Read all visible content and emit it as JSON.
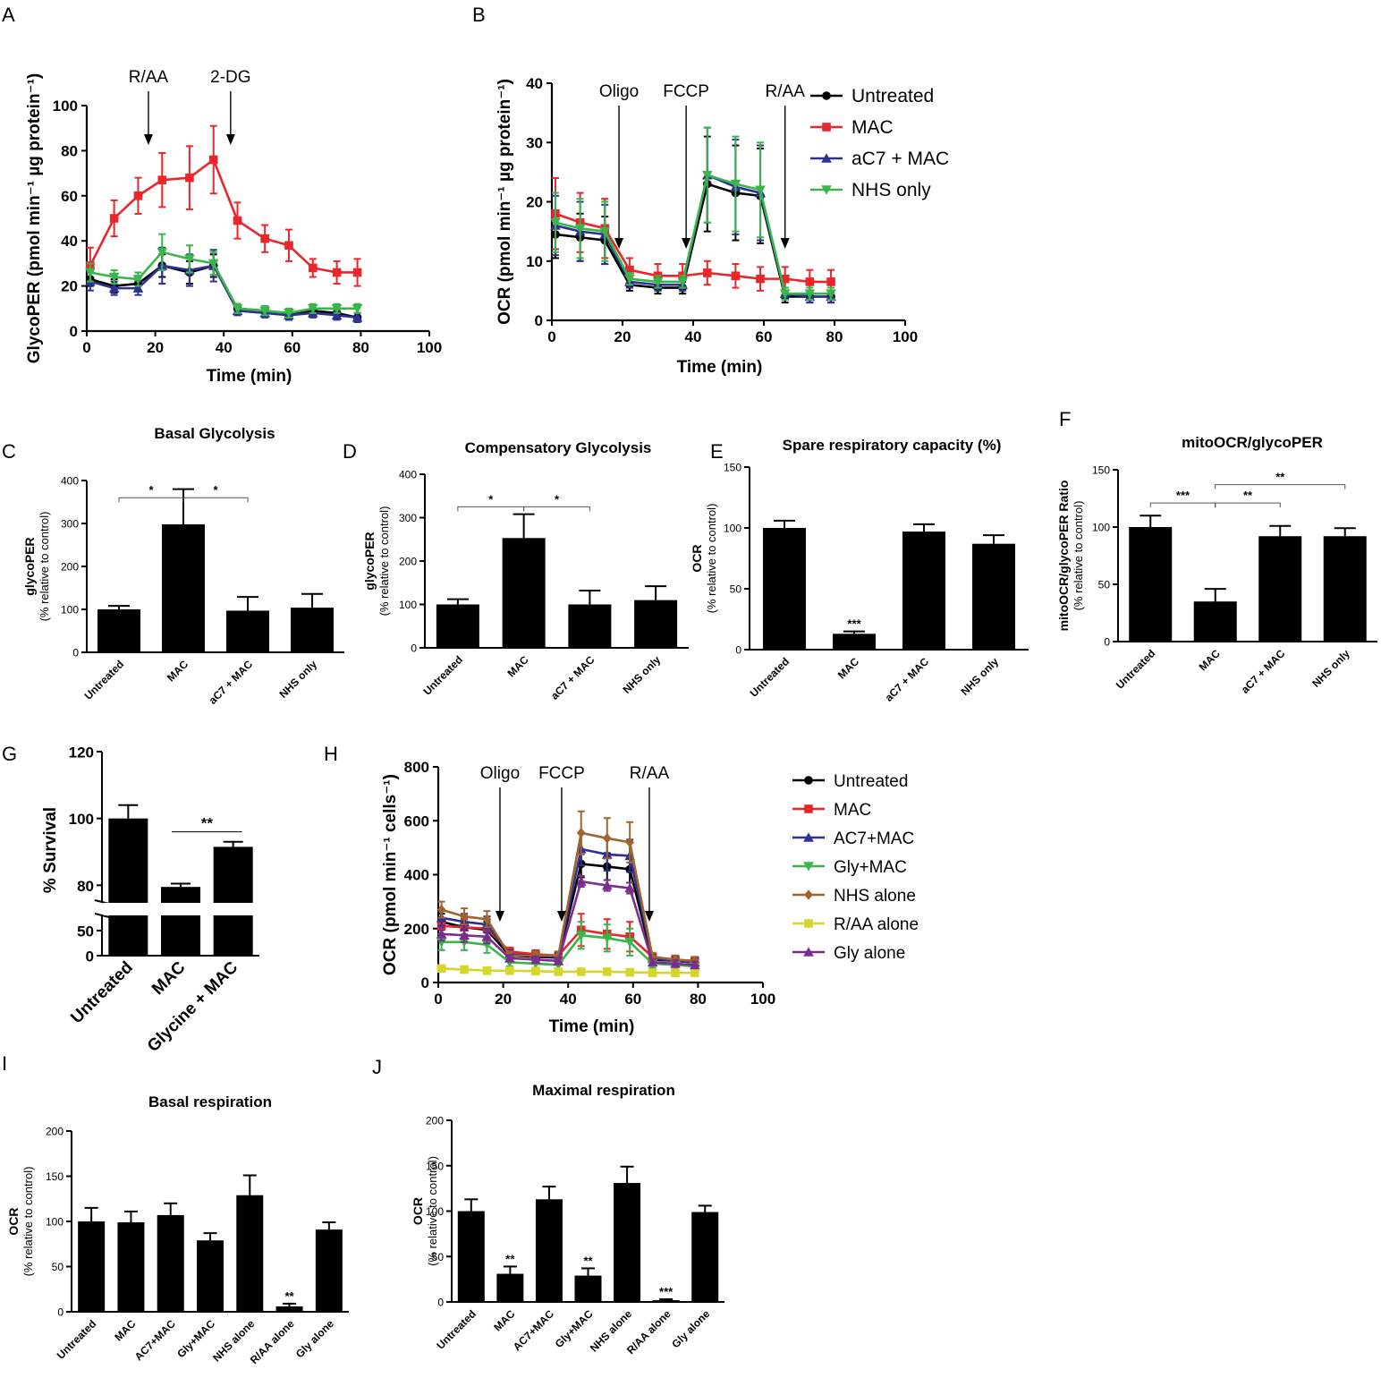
{
  "colors": {
    "untreated": "#000000",
    "mac": "#e8262c",
    "ac7mac": "#2e3192",
    "nhs": "#39b54a",
    "nhsalone": "#a0642d",
    "raa": "#d6d62a",
    "gly": "#7b2d8e"
  },
  "chart_data": [
    {
      "id": "A",
      "panel": "A",
      "type": "line",
      "xlabel": "Time (min)",
      "ylabel": "GlycoPER (pmol min⁻¹ µg protein⁻¹)",
      "xlim": [
        0,
        100
      ],
      "xticks": [
        0,
        20,
        40,
        60,
        80,
        100
      ],
      "ylim": [
        0,
        100
      ],
      "yticks": [
        0,
        20,
        40,
        60,
        80,
        100
      ],
      "x": [
        1,
        8,
        15,
        22,
        30,
        37,
        44,
        52,
        59,
        66,
        73,
        79
      ],
      "series": [
        {
          "name": "Untreated",
          "color": "untreated",
          "marker": "circle",
          "values": [
            23,
            20,
            21,
            29,
            26,
            29,
            10,
            9,
            7,
            9,
            8,
            6
          ],
          "err": [
            3,
            3,
            3,
            5,
            5,
            5,
            2,
            2,
            2,
            2,
            2,
            2
          ]
        },
        {
          "name": "MAC",
          "color": "mac",
          "marker": "square",
          "values": [
            29,
            50,
            60,
            67,
            68,
            76,
            49,
            41,
            38,
            28,
            26,
            26
          ],
          "err": [
            8,
            8,
            8,
            12,
            14,
            15,
            8,
            6,
            7,
            4,
            5,
            6
          ]
        },
        {
          "name": "aC7 + MAC",
          "color": "ac7mac",
          "marker": "triangle",
          "values": [
            22,
            19,
            19,
            29,
            27,
            29,
            9,
            8,
            7,
            8,
            7,
            6
          ],
          "err": [
            4,
            3,
            3,
            8,
            7,
            7,
            2,
            2,
            2,
            2,
            2,
            2
          ]
        },
        {
          "name": "NHS only",
          "color": "nhs",
          "marker": "tridown",
          "values": [
            26,
            24,
            23,
            35,
            32,
            30,
            10,
            9,
            8,
            10,
            10,
            10
          ],
          "err": [
            4,
            3,
            3,
            8,
            6,
            5,
            2,
            2,
            2,
            2,
            2,
            2
          ]
        }
      ],
      "annotations": [
        {
          "label": "R/AA",
          "x": 18
        },
        {
          "label": "2-DG",
          "x": 42
        }
      ]
    },
    {
      "id": "B",
      "panel": "B",
      "type": "line",
      "xlabel": "Time (min)",
      "ylabel": "OCR (pmol min⁻¹ µg protein⁻¹)",
      "xlim": [
        0,
        100
      ],
      "xticks": [
        0,
        20,
        40,
        60,
        80,
        100
      ],
      "ylim": [
        0,
        40
      ],
      "yticks": [
        0,
        10,
        20,
        30,
        40
      ],
      "x": [
        1,
        8,
        15,
        22,
        30,
        37,
        44,
        52,
        59,
        66,
        73,
        79
      ],
      "series": [
        {
          "name": "Untreated",
          "color": "untreated",
          "marker": "circle",
          "values": [
            14.5,
            14,
            13.5,
            6,
            5.5,
            5.5,
            23,
            21.5,
            21,
            4,
            4,
            4
          ],
          "err": [
            4,
            4,
            4,
            1,
            1,
            1,
            8,
            8,
            8,
            1,
            1,
            1
          ]
        },
        {
          "name": "MAC",
          "color": "mac",
          "marker": "square",
          "values": [
            18,
            16.5,
            15.5,
            8.5,
            7.5,
            7.5,
            8,
            7.5,
            7,
            7,
            6.5,
            6.5
          ],
          "err": [
            6,
            5,
            5,
            2,
            2,
            2,
            2,
            2,
            2,
            2,
            2,
            2
          ]
        },
        {
          "name": "aC7 + MAC",
          "color": "ac7mac",
          "marker": "triangle",
          "values": [
            16,
            15,
            14.5,
            6.5,
            6,
            6,
            24.5,
            22.5,
            21.5,
            4.5,
            4,
            4
          ],
          "err": [
            5,
            5,
            5,
            1,
            1,
            1,
            8,
            8,
            8,
            1,
            1,
            1
          ]
        },
        {
          "name": "NHS only",
          "color": "nhs",
          "marker": "tridown",
          "values": [
            16.5,
            15.5,
            15,
            7,
            6.5,
            6.5,
            24.5,
            23,
            22,
            4.5,
            4.5,
            4.5
          ],
          "err": [
            5,
            5,
            5,
            1,
            1,
            1,
            8,
            8,
            8,
            1,
            1,
            1
          ]
        }
      ],
      "annotations": [
        {
          "label": "Oligo",
          "x": 19
        },
        {
          "label": "FCCP",
          "x": 38
        },
        {
          "label": "R/AA",
          "x": 66
        }
      ]
    },
    {
      "id": "C",
      "panel": "C",
      "type": "bar",
      "title": "Basal Glycolysis",
      "ylabel": [
        "glycoPER",
        "(% relative to control)"
      ],
      "ylim": [
        0,
        400
      ],
      "yticks": [
        0,
        100,
        200,
        300,
        400
      ],
      "categories": [
        "Untreated",
        "MAC",
        "aC7 + MAC",
        "NHS only"
      ],
      "values": [
        100,
        298,
        97,
        104
      ],
      "err": [
        8,
        82,
        32,
        32
      ],
      "brackets": [
        {
          "from": 0,
          "to": 1,
          "label": "*",
          "y": 360
        },
        {
          "from": 1,
          "to": 2,
          "label": "*",
          "y": 360
        }
      ]
    },
    {
      "id": "D",
      "panel": "D",
      "type": "bar",
      "title": "Compensatory Glycolysis",
      "ylabel": [
        "glycoPER",
        "(% relative to control)"
      ],
      "ylim": [
        0,
        400
      ],
      "yticks": [
        0,
        100,
        200,
        300,
        400
      ],
      "categories": [
        "Untreated",
        "MAC",
        "aC7 + MAC",
        "NHS only"
      ],
      "values": [
        100,
        253,
        100,
        110
      ],
      "err": [
        12,
        55,
        32,
        32
      ],
      "brackets": [
        {
          "from": 0,
          "to": 1,
          "label": "*",
          "y": 325
        },
        {
          "from": 1,
          "to": 2,
          "label": "*",
          "y": 325
        }
      ]
    },
    {
      "id": "E",
      "panel": "E",
      "type": "bar",
      "title": "Spare respiratory capacity (%)",
      "ylabel": [
        "OCR",
        "(% relative to control)"
      ],
      "ylim": [
        0,
        150
      ],
      "yticks": [
        0,
        50,
        100,
        150
      ],
      "categories": [
        "Untreated",
        "MAC",
        "aC7 + MAC",
        "NHS only"
      ],
      "values": [
        100,
        13,
        97,
        87
      ],
      "err": [
        6,
        2,
        6,
        7
      ],
      "stars": [
        {
          "bar": 1,
          "label": "***"
        }
      ]
    },
    {
      "id": "F",
      "panel": "F",
      "type": "bar",
      "title": "mitoOCR/glycoPER",
      "ylabel": [
        "mitoOCR/glycoPER Ratio",
        "(% relative to control)"
      ],
      "ylim": [
        0,
        150
      ],
      "yticks": [
        0,
        50,
        100,
        150
      ],
      "categories": [
        "Untreated",
        "MAC",
        "aC7 + MAC",
        "NHS only"
      ],
      "values": [
        100,
        35,
        92,
        92
      ],
      "err": [
        10,
        11,
        9,
        7
      ],
      "brackets": [
        {
          "from": 0,
          "to": 1,
          "label": "***",
          "y": 121
        },
        {
          "from": 1,
          "to": 2,
          "label": "**",
          "y": 121
        },
        {
          "from": 1,
          "to": 3,
          "label": "**",
          "y": 137
        }
      ]
    },
    {
      "id": "G",
      "panel": "G",
      "type": "bar",
      "title": "",
      "ylabel": [
        "% Survival"
      ],
      "ylim": [
        0,
        120
      ],
      "yticks": [
        0,
        50,
        80,
        100,
        120
      ],
      "categories": [
        "Untreated",
        "MAC",
        "Glycine + MAC"
      ],
      "values": [
        100,
        79.5,
        91.5
      ],
      "err": [
        4,
        1,
        1.5
      ],
      "brackets": [
        {
          "from": 1,
          "to": 2,
          "label": "**",
          "y": 96,
          "flat": true
        }
      ]
    },
    {
      "id": "H",
      "panel": "H",
      "type": "line",
      "xlabel": "Time (min)",
      "ylabel": "OCR (pmol min⁻¹ cells⁻¹)",
      "xlim": [
        0,
        100
      ],
      "xticks": [
        0,
        20,
        40,
        60,
        80,
        100
      ],
      "ylim": [
        0,
        800
      ],
      "yticks": [
        0,
        200,
        400,
        600,
        800
      ],
      "x": [
        1,
        8,
        15,
        22,
        30,
        37,
        44,
        52,
        59,
        66,
        73,
        79
      ],
      "series": [
        {
          "name": "Untreated",
          "color": "untreated",
          "marker": "circle",
          "values": [
            225,
            205,
            195,
            100,
            95,
            92,
            440,
            430,
            420,
            85,
            80,
            75
          ],
          "err": [
            30,
            30,
            30,
            15,
            15,
            15,
            50,
            50,
            50,
            15,
            15,
            15
          ]
        },
        {
          "name": "MAC",
          "color": "mac",
          "marker": "square",
          "values": [
            210,
            205,
            200,
            115,
            105,
            100,
            195,
            180,
            170,
            95,
            85,
            80
          ],
          "err": [
            30,
            30,
            30,
            15,
            15,
            15,
            60,
            55,
            55,
            15,
            15,
            15
          ]
        },
        {
          "name": "AC7+MAC",
          "color": "ac7mac",
          "marker": "triangle",
          "values": [
            240,
            225,
            215,
            105,
            100,
            95,
            495,
            475,
            470,
            90,
            80,
            75
          ],
          "err": [
            30,
            30,
            30,
            15,
            15,
            15,
            60,
            60,
            60,
            15,
            15,
            15
          ]
        },
        {
          "name": "Gly+MAC",
          "color": "nhs",
          "marker": "tridown",
          "values": [
            150,
            150,
            140,
            75,
            70,
            65,
            175,
            165,
            150,
            70,
            65,
            60
          ],
          "err": [
            30,
            30,
            30,
            15,
            15,
            15,
            50,
            50,
            50,
            15,
            15,
            15
          ]
        },
        {
          "name": "NHS alone",
          "color": "nhsalone",
          "marker": "diamond",
          "values": [
            270,
            245,
            235,
            100,
            100,
            100,
            555,
            535,
            520,
            95,
            85,
            80
          ],
          "err": [
            30,
            30,
            30,
            15,
            15,
            15,
            80,
            75,
            75,
            15,
            15,
            15
          ]
        },
        {
          "name": "R/AA alone",
          "color": "raa",
          "marker": "square",
          "values": [
            52,
            48,
            44,
            44,
            42,
            40,
            40,
            40,
            38,
            36,
            36,
            36
          ],
          "err": [
            10,
            8,
            8,
            8,
            8,
            8,
            8,
            8,
            8,
            8,
            8,
            8
          ]
        },
        {
          "name": "Gly alone",
          "color": "gly",
          "marker": "triangle",
          "values": [
            180,
            175,
            170,
            90,
            85,
            80,
            375,
            360,
            350,
            75,
            70,
            65
          ],
          "err": [
            25,
            25,
            25,
            12,
            12,
            12,
            20,
            20,
            20,
            12,
            12,
            12
          ]
        }
      ],
      "annotations": [
        {
          "label": "Oligo",
          "x": 19
        },
        {
          "label": "FCCP",
          "x": 38
        },
        {
          "label": "R/AA",
          "x": 65
        }
      ]
    },
    {
      "id": "I",
      "panel": "I",
      "type": "bar",
      "title": "Basal respiration",
      "ylabel": [
        "OCR",
        "(% relative to control)"
      ],
      "ylim": [
        0,
        200
      ],
      "yticks": [
        0,
        50,
        100,
        150,
        200
      ],
      "categories": [
        "Untreated",
        "MAC",
        "AC7+MAC",
        "Gly+MAC",
        "NHS alone",
        "R/AA alone",
        "Gly alone"
      ],
      "values": [
        100,
        99,
        107,
        79,
        129,
        6,
        91
      ],
      "err": [
        15,
        12,
        13,
        8,
        22,
        3,
        8
      ],
      "stars": [
        {
          "bar": 5,
          "label": "**"
        }
      ]
    },
    {
      "id": "J",
      "panel": "J",
      "type": "bar",
      "title": "Maximal respiration",
      "ylabel": [
        "OCR",
        "(% relative to control)"
      ],
      "ylim": [
        0,
        200
      ],
      "yticks": [
        0,
        50,
        100,
        150,
        200
      ],
      "categories": [
        "Untreated",
        "MAC",
        "AC7+MAC",
        "Gly+MAC",
        "NHS alone",
        "R/AA alone",
        "Gly alone"
      ],
      "values": [
        100,
        31,
        113,
        29,
        131,
        2,
        99
      ],
      "err": [
        13,
        8,
        14,
        8,
        18,
        1,
        7
      ],
      "stars": [
        {
          "bar": 1,
          "label": "**"
        },
        {
          "bar": 3,
          "label": "**"
        },
        {
          "bar": 5,
          "label": "***"
        }
      ]
    }
  ]
}
